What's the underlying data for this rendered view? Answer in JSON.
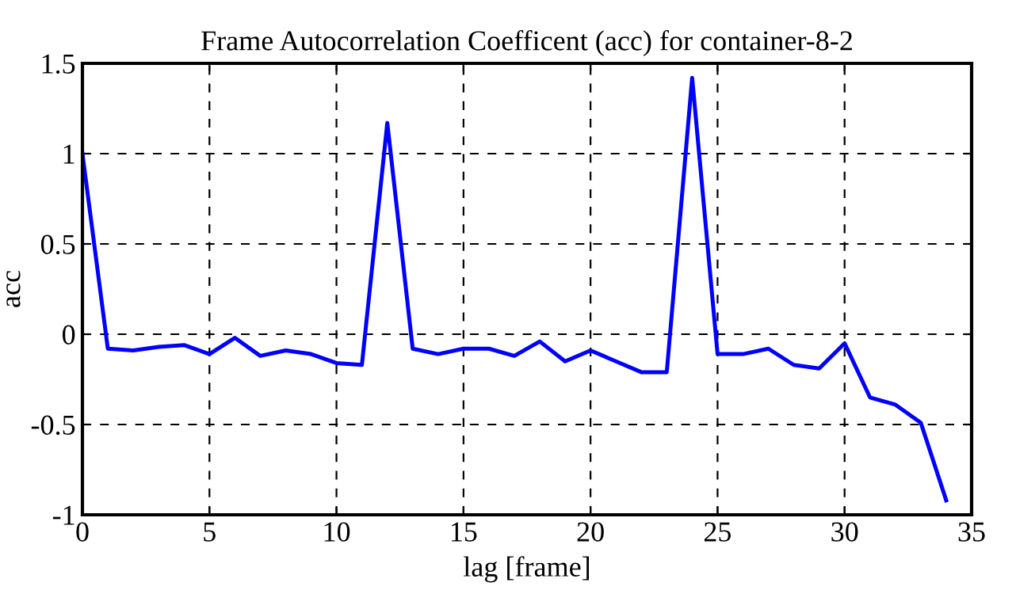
{
  "chart_data": {
    "type": "line",
    "title": "Frame Autocorrelation Coefficent (acc) for container-8-2",
    "xlabel": "lag [frame]",
    "ylabel": "acc",
    "x": [
      0,
      1,
      2,
      3,
      4,
      5,
      6,
      7,
      8,
      9,
      10,
      11,
      12,
      13,
      14,
      15,
      16,
      17,
      18,
      19,
      20,
      21,
      22,
      23,
      24,
      25,
      26,
      27,
      28,
      29,
      30,
      31,
      32,
      33,
      34
    ],
    "series": [
      {
        "color": "#0000ff",
        "values": [
          1.0,
          -0.08,
          -0.09,
          -0.07,
          -0.06,
          -0.11,
          -0.02,
          -0.12,
          -0.09,
          -0.11,
          -0.16,
          -0.17,
          1.17,
          -0.08,
          -0.11,
          -0.08,
          -0.08,
          -0.12,
          -0.04,
          -0.15,
          -0.09,
          -0.15,
          -0.21,
          -0.21,
          1.42,
          -0.11,
          -0.11,
          -0.08,
          -0.17,
          -0.19,
          -0.05,
          -0.35,
          -0.39,
          -0.49,
          -0.92
        ]
      }
    ],
    "xlim": [
      0,
      35
    ],
    "ylim": [
      -1,
      1.5
    ],
    "xticks": [
      0,
      5,
      10,
      15,
      20,
      25,
      30,
      35
    ],
    "yticks": [
      -1,
      -0.5,
      0,
      0.5,
      1,
      1.5
    ],
    "grid": true,
    "line_style": "solid",
    "marker": "none"
  }
}
